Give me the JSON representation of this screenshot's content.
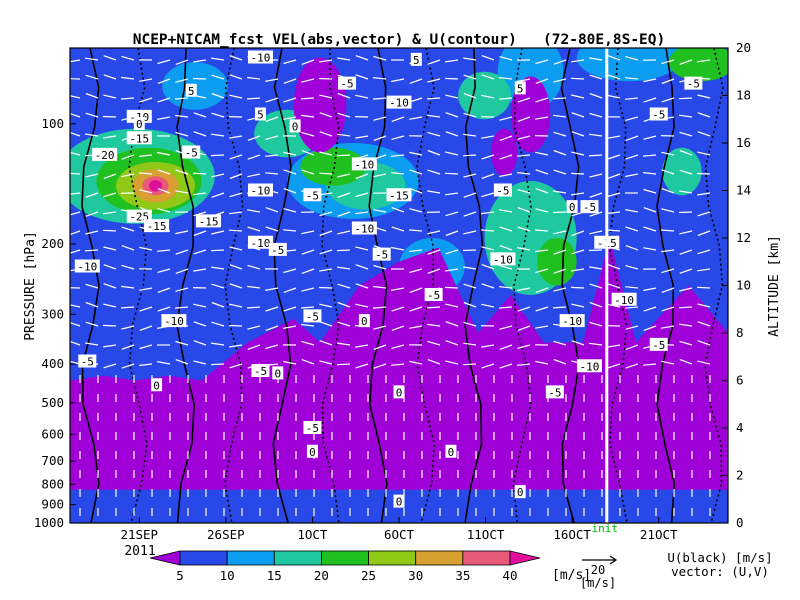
{
  "chart_data": {
    "type": "heatmap",
    "title": "NCEP+NICAM_fcst VEL(abs,vector) & U(contour)   (72-80E,8S-EQ)",
    "ylabel_left": "PRESSURE [hPa]",
    "ylabel_right": "ALTITUDE [km]",
    "year_label": "2011",
    "x_axis": {
      "start": "2011-09-17",
      "end": "2011-10-25",
      "ticks": [
        {
          "date": "2011-09-21",
          "label": "21SEP"
        },
        {
          "date": "2011-09-26",
          "label": "26SEP"
        },
        {
          "date": "2011-10-01",
          "label": "1OCT"
        },
        {
          "date": "2011-10-06",
          "label": "6OCT"
        },
        {
          "date": "2011-10-11",
          "label": "11OCT"
        },
        {
          "date": "2011-10-16",
          "label": "16OCT"
        },
        {
          "date": "2011-10-21",
          "label": "21OCT"
        }
      ]
    },
    "pressure_ticks": [
      100,
      200,
      300,
      400,
      500,
      600,
      700,
      800,
      900,
      1000
    ],
    "altitude_ticks": [
      0,
      2,
      4,
      6,
      8,
      10,
      12,
      14,
      16,
      18,
      20
    ],
    "altitude_range_km": [
      0,
      20
    ],
    "forecast_start_date": "2011-10-18",
    "forecast_label": "init",
    "colorbar": {
      "unit": "[m/s]",
      "ticks": [
        5,
        10,
        15,
        20,
        25,
        30,
        35,
        40
      ],
      "colors": [
        "#a000d8",
        "#2848e8",
        "#0c9cf0",
        "#20c8a0",
        "#20c020",
        "#90c818",
        "#d8a030",
        "#e85878",
        "#e0109c"
      ]
    },
    "vector_scale": {
      "value": "20",
      "unit": "[m/s]"
    },
    "legend_text": [
      "U(black) [m/s]",
      "vector: (U,V)"
    ],
    "contour_labels": [
      {
        "text": "-10",
        "date": "2011-09-28",
        "km": 19.6
      },
      {
        "text": "5",
        "date": "2011-10-07",
        "km": 19.5
      },
      {
        "text": "5",
        "date": "2011-09-24",
        "km": 18.2
      },
      {
        "text": "-5",
        "date": "2011-10-03",
        "km": 18.5
      },
      {
        "text": "5",
        "date": "2011-10-13",
        "km": 18.3
      },
      {
        "text": "-5",
        "date": "2011-10-23",
        "km": 18.5
      },
      {
        "text": "-10",
        "date": "2011-09-21",
        "km": 17.1
      },
      {
        "text": "0",
        "date": "2011-09-21",
        "km": 16.8
      },
      {
        "text": "5",
        "date": "2011-09-28",
        "km": 17.2
      },
      {
        "text": "0",
        "date": "2011-09-30",
        "km": 16.7
      },
      {
        "text": "-10",
        "date": "2011-10-06",
        "km": 17.7
      },
      {
        "text": "-5",
        "date": "2011-10-21",
        "km": 17.2
      },
      {
        "text": "-15",
        "date": "2011-09-21",
        "km": 16.2
      },
      {
        "text": "-5",
        "date": "2011-09-24",
        "km": 15.6
      },
      {
        "text": "-20",
        "date": "2011-09-19",
        "km": 15.5
      },
      {
        "text": "-10",
        "date": "2011-10-04",
        "km": 15.1
      },
      {
        "text": "-10",
        "date": "2011-09-28",
        "km": 14.0
      },
      {
        "text": "-5",
        "date": "2011-10-01",
        "km": 13.8
      },
      {
        "text": "-15",
        "date": "2011-10-06",
        "km": 13.8
      },
      {
        "text": "-5",
        "date": "2011-10-12",
        "km": 14.0
      },
      {
        "text": "-25",
        "date": "2011-09-21",
        "km": 12.9
      },
      {
        "text": "-15",
        "date": "2011-09-25",
        "km": 12.7
      },
      {
        "text": "-15",
        "date": "2011-09-22",
        "km": 12.5
      },
      {
        "text": "0",
        "date": "2011-10-16",
        "km": 13.3
      },
      {
        "text": "-5",
        "date": "2011-10-17",
        "km": 13.3
      },
      {
        "text": "-10",
        "date": "2011-10-04",
        "km": 12.4
      },
      {
        "text": "-10",
        "date": "2011-09-28",
        "km": 11.8
      },
      {
        "text": "-5",
        "date": "2011-09-29",
        "km": 11.5
      },
      {
        "text": "-5",
        "date": "2011-10-05",
        "km": 11.3
      },
      {
        "text": "-15",
        "date": "2011-10-18",
        "km": 11.8
      },
      {
        "text": "-10",
        "date": "2011-09-18",
        "km": 10.8
      },
      {
        "text": "-10",
        "date": "2011-10-12",
        "km": 11.1
      },
      {
        "text": "-5",
        "date": "2011-10-08",
        "km": 9.6
      },
      {
        "text": "-10",
        "date": "2011-10-19",
        "km": 9.4
      },
      {
        "text": "-5",
        "date": "2011-10-01",
        "km": 8.7
      },
      {
        "text": "-10",
        "date": "2011-09-23",
        "km": 8.5
      },
      {
        "text": "0",
        "date": "2011-10-04",
        "km": 8.5
      },
      {
        "text": "-10",
        "date": "2011-10-16",
        "km": 8.5
      },
      {
        "text": "-5",
        "date": "2011-10-21",
        "km": 7.5
      },
      {
        "text": "-5",
        "date": "2011-09-18",
        "km": 6.8
      },
      {
        "text": "-10",
        "date": "2011-10-17",
        "km": 6.6
      },
      {
        "text": "-5",
        "date": "2011-09-28",
        "km": 6.4
      },
      {
        "text": "0",
        "date": "2011-09-29",
        "km": 6.3
      },
      {
        "text": "0",
        "date": "2011-09-22",
        "km": 5.8
      },
      {
        "text": "0",
        "date": "2011-10-06",
        "km": 5.5
      },
      {
        "text": "-5",
        "date": "2011-10-15",
        "km": 5.5
      },
      {
        "text": "-5",
        "date": "2011-10-01",
        "km": 4.0
      },
      {
        "text": "0",
        "date": "2011-10-01",
        "km": 3.0
      },
      {
        "text": "0",
        "date": "2011-10-09",
        "km": 3.0
      },
      {
        "text": "0",
        "date": "2011-10-13",
        "km": 1.3
      },
      {
        "text": "0",
        "date": "2011-10-06",
        "km": 0.9
      }
    ]
  }
}
